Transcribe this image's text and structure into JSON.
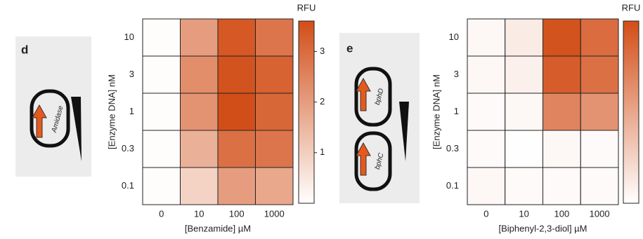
{
  "chart_data": [
    {
      "type": "heatmap",
      "panel": "d",
      "annotations": [
        "Amidase"
      ],
      "x": [
        "0",
        "10",
        "100",
        "1000"
      ],
      "y": [
        "10",
        "3",
        "1",
        "0.3",
        "0.1"
      ],
      "values": [
        [
          0.05,
          2.0,
          3.4,
          2.8
        ],
        [
          0.05,
          2.3,
          3.5,
          3.2
        ],
        [
          0.05,
          2.2,
          3.6,
          3.1
        ],
        [
          0.05,
          1.6,
          2.9,
          2.8
        ],
        [
          0.05,
          0.9,
          2.0,
          1.8
        ]
      ],
      "xlabel": "[Benzamide] µM",
      "ylabel": "[Enzyme DNA] nM",
      "colorbar_label": "RFU",
      "clim": [
        0,
        3.6
      ],
      "cticks": [
        1,
        2,
        3
      ],
      "colors": [
        "#ffffff",
        "#d24e18"
      ]
    },
    {
      "type": "heatmap",
      "panel": "e",
      "annotations": [
        "bphD",
        "bphC"
      ],
      "x": [
        "0",
        "10",
        "100",
        "1000"
      ],
      "y": [
        "10",
        "3",
        "1",
        "0.3",
        "0.1"
      ],
      "values": [
        [
          0.15,
          0.4,
          3.5,
          3.0
        ],
        [
          0.15,
          0.3,
          3.3,
          2.9
        ],
        [
          0.1,
          0.15,
          2.5,
          2.2
        ],
        [
          0.1,
          0.02,
          0.15,
          0.1
        ],
        [
          0.15,
          0.1,
          0.1,
          0.1
        ]
      ],
      "xlabel": "[Biphenyl-2,3-diol] µM",
      "ylabel": "[Enzyme DNA] nM",
      "colorbar_label": "RFU",
      "clim": [
        0,
        3.6
      ],
      "colors": [
        "#ffffff",
        "#d24e18"
      ]
    }
  ]
}
